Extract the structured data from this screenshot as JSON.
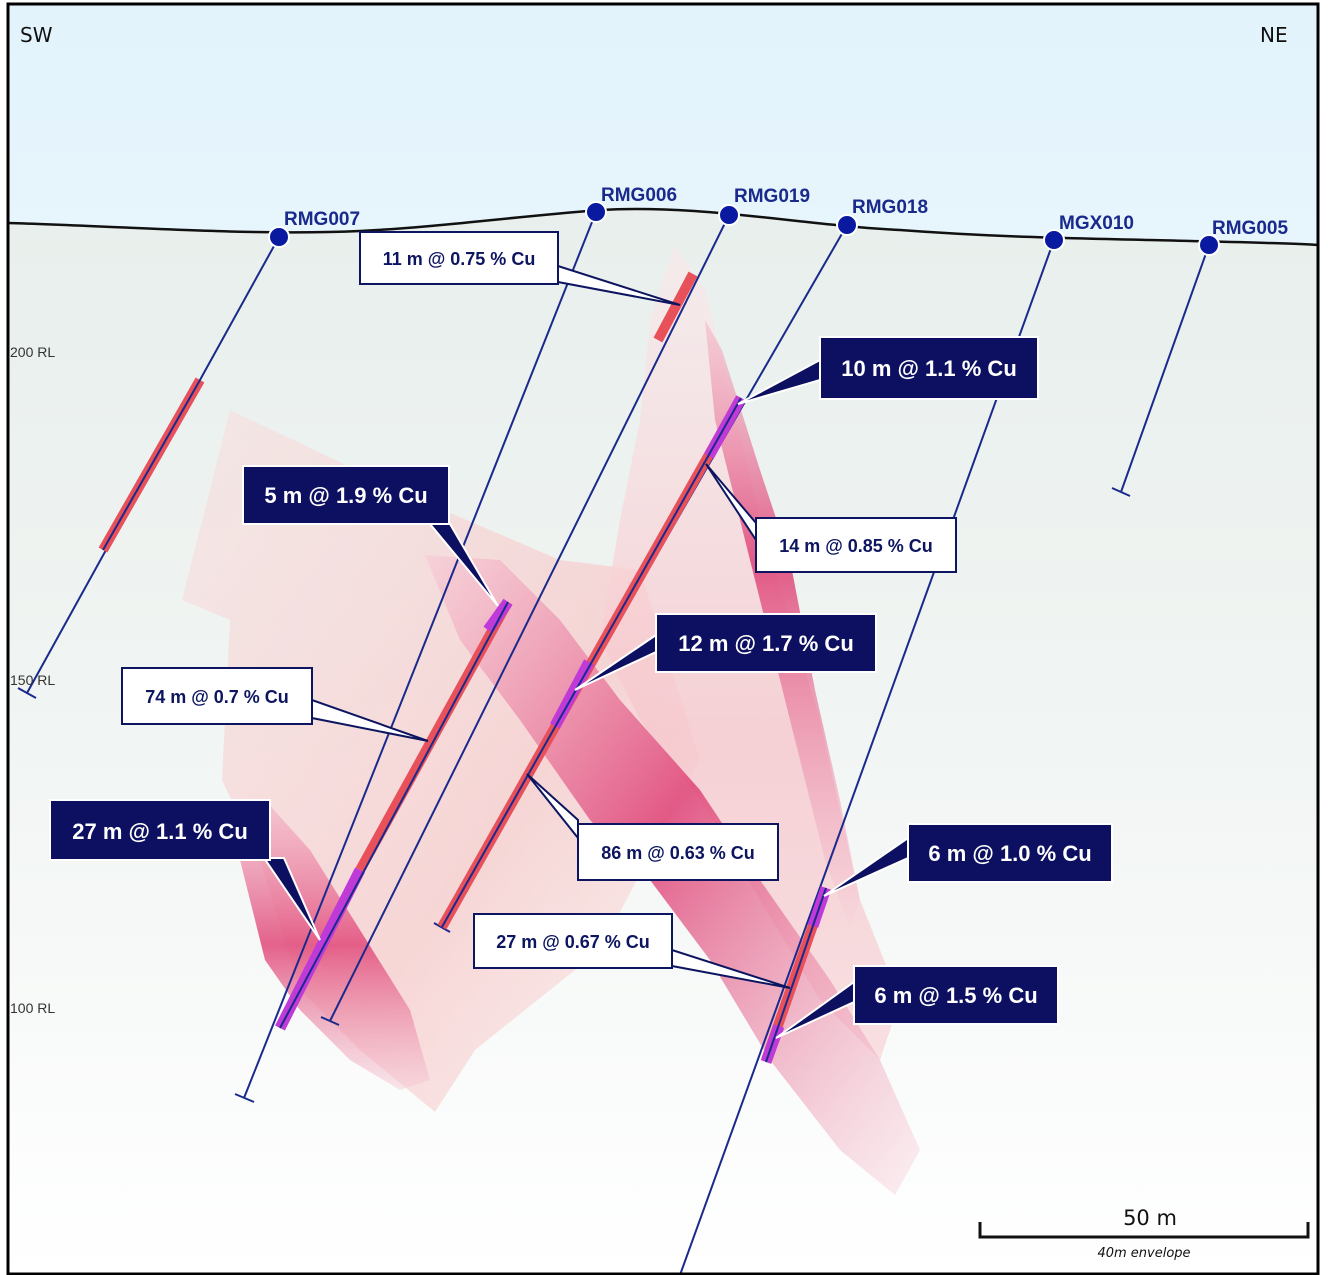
{
  "orientation": {
    "left": "SW",
    "right": "NE"
  },
  "elevation_labels": [
    "200 RL",
    "150 RL",
    "100 RL"
  ],
  "drill_holes": [
    "RMG007",
    "RMG006",
    "RMG019",
    "RMG018",
    "MGX010",
    "RMG005"
  ],
  "intercepts": [
    {
      "text": "11 m @ 0.75 % Cu",
      "style": "light"
    },
    {
      "text": "10 m @ 1.1 % Cu",
      "style": "dark"
    },
    {
      "text": "5 m @ 1.9 % Cu",
      "style": "dark"
    },
    {
      "text": "14 m @ 0.85 % Cu",
      "style": "light"
    },
    {
      "text": "12 m @ 1.7 % Cu",
      "style": "dark"
    },
    {
      "text": "74 m @ 0.7 % Cu",
      "style": "light"
    },
    {
      "text": "27 m @ 1.1 % Cu",
      "style": "dark"
    },
    {
      "text": "86 m @ 0.63 % Cu",
      "style": "light"
    },
    {
      "text": "6 m @ 1.0 % Cu",
      "style": "dark"
    },
    {
      "text": "27 m @ 0.67 % Cu",
      "style": "light"
    },
    {
      "text": "6 m @ 1.5 % Cu",
      "style": "dark"
    }
  ],
  "scale_bar": {
    "label": "50 m",
    "note": "40m envelope"
  },
  "colors": {
    "hole_trace": "#1a2a8c",
    "collar": "#0a1aa0",
    "intercept_low": "#e8505a",
    "intercept_high": "#c03ad8",
    "envelope": "#e4507a",
    "dark_box": "#0d1060"
  }
}
